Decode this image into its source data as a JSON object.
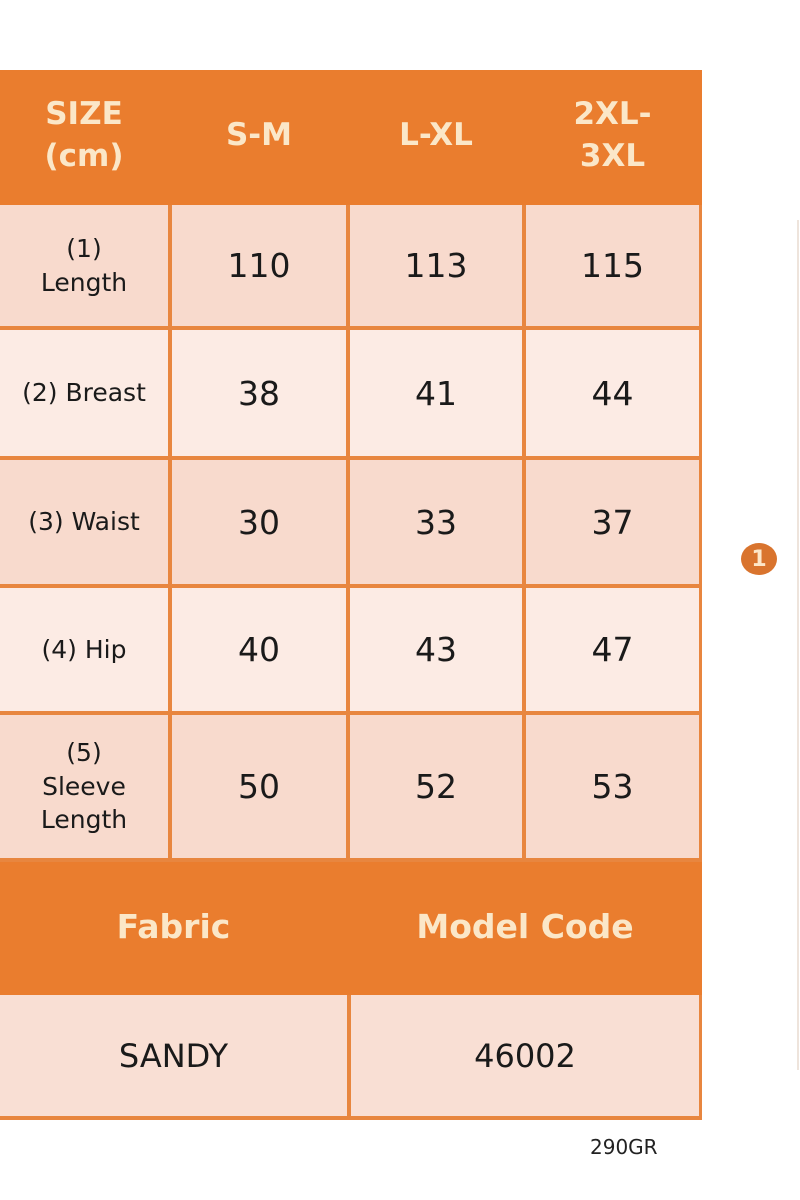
{
  "header": [
    "SIZE (cm)",
    "S-M",
    "L-XL",
    "2XL- 3XL"
  ],
  "rows": [
    {
      "label": "(1) Length",
      "values": [
        "110",
        "113",
        "115"
      ]
    },
    {
      "label": "(2) Breast",
      "values": [
        "38",
        "41",
        "44"
      ]
    },
    {
      "label": "(3) Waist",
      "values": [
        "30",
        "33",
        "37"
      ]
    },
    {
      "label": "(4) Hip",
      "values": [
        "40",
        "43",
        "47"
      ]
    },
    {
      "label": "(5) Sleeve Length",
      "values": [
        "50",
        "52",
        "53"
      ]
    }
  ],
  "footer": {
    "fabric_label": "Fabric",
    "model_code_label": "Model Code",
    "fabric": "SANDY",
    "model_code": "46002"
  },
  "product_code": "290GR",
  "badge": "1",
  "colors": {
    "accent": "#ea7d2e",
    "row_pink": "#f8dacd",
    "row_light": "#fcebe4"
  }
}
